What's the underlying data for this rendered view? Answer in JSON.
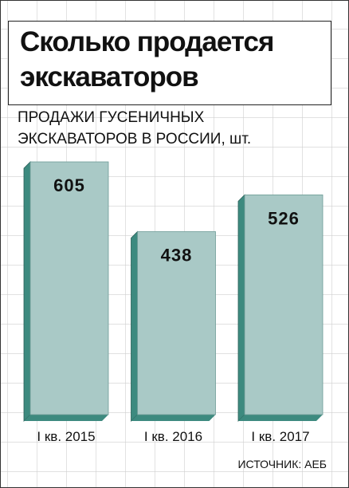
{
  "chart_data": {
    "type": "bar",
    "title": "Сколько продается экскаваторов",
    "subtitle": "ПРОДАЖИ ГУСЕНИЧНЫХ ЭКСКАВАТОРОВ В РОССИИ, шт.",
    "categories": [
      "I кв. 2015",
      "I кв. 2016",
      "I кв. 2017"
    ],
    "values": [
      605,
      438,
      526
    ],
    "color": "#a9c9c6",
    "source": "ИСТОЧНИК: АЕБ"
  }
}
